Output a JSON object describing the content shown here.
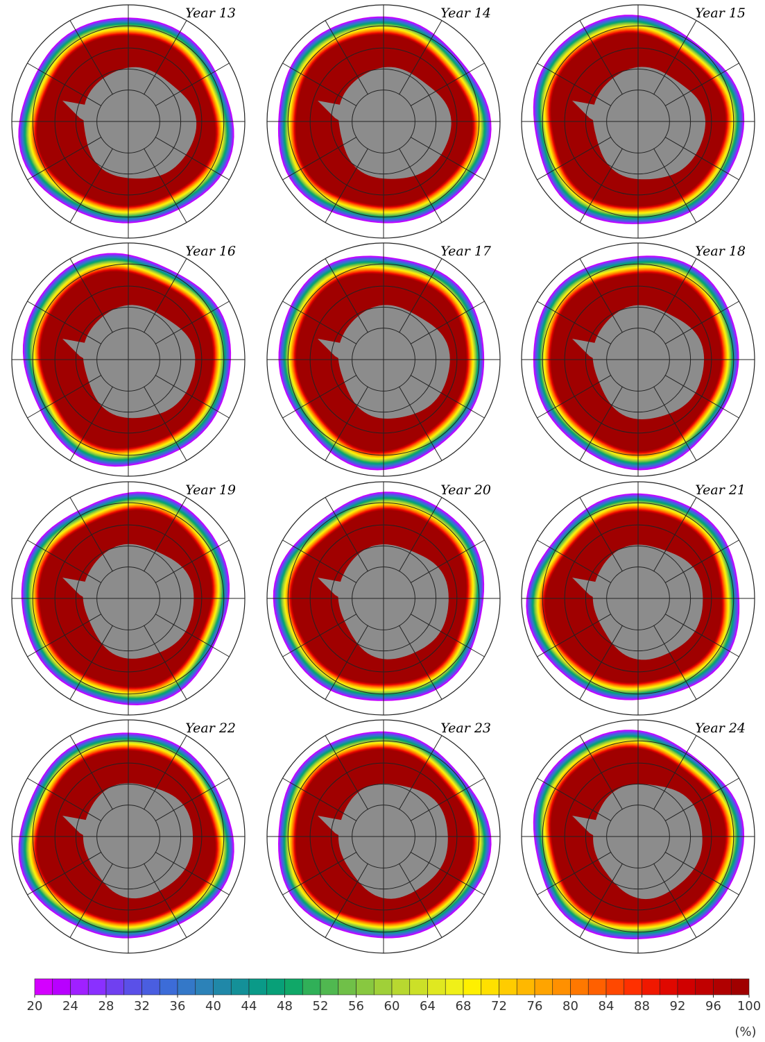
{
  "panels": [
    {
      "title": "Year 13"
    },
    {
      "title": "Year 14"
    },
    {
      "title": "Year 15"
    },
    {
      "title": "Year 16"
    },
    {
      "title": "Year 17"
    },
    {
      "title": "Year 18"
    },
    {
      "title": "Year 19"
    },
    {
      "title": "Year 20"
    },
    {
      "title": "Year 21"
    },
    {
      "title": "Year 22"
    },
    {
      "title": "Year 23"
    },
    {
      "title": "Year 24"
    }
  ],
  "colorbar": {
    "range": [
      20,
      100
    ],
    "ticks": [
      20,
      24,
      28,
      32,
      36,
      40,
      44,
      48,
      52,
      56,
      60,
      64,
      68,
      72,
      76,
      80,
      84,
      88,
      92,
      96,
      100
    ],
    "unit": "(%)",
    "colors": [
      "#d400ff",
      "#b800ff",
      "#a020ff",
      "#8a30ff",
      "#7040f0",
      "#5a50e8",
      "#4a5ee0",
      "#3c6cd8",
      "#3478c8",
      "#2c82b8",
      "#2088a8",
      "#149098",
      "#0a9a88",
      "#08a078",
      "#10a868",
      "#30b058",
      "#50b850",
      "#70c048",
      "#88c840",
      "#a0d038",
      "#b8d830",
      "#cce028",
      "#e0e820",
      "#f0f018",
      "#fff000",
      "#ffe000",
      "#ffcc00",
      "#ffb800",
      "#ffa400",
      "#ff9000",
      "#ff7800",
      "#ff6000",
      "#ff4800",
      "#ff3000",
      "#f01800",
      "#e00800",
      "#d00000",
      "#c00000",
      "#b00000",
      "#a00000"
    ]
  }
}
